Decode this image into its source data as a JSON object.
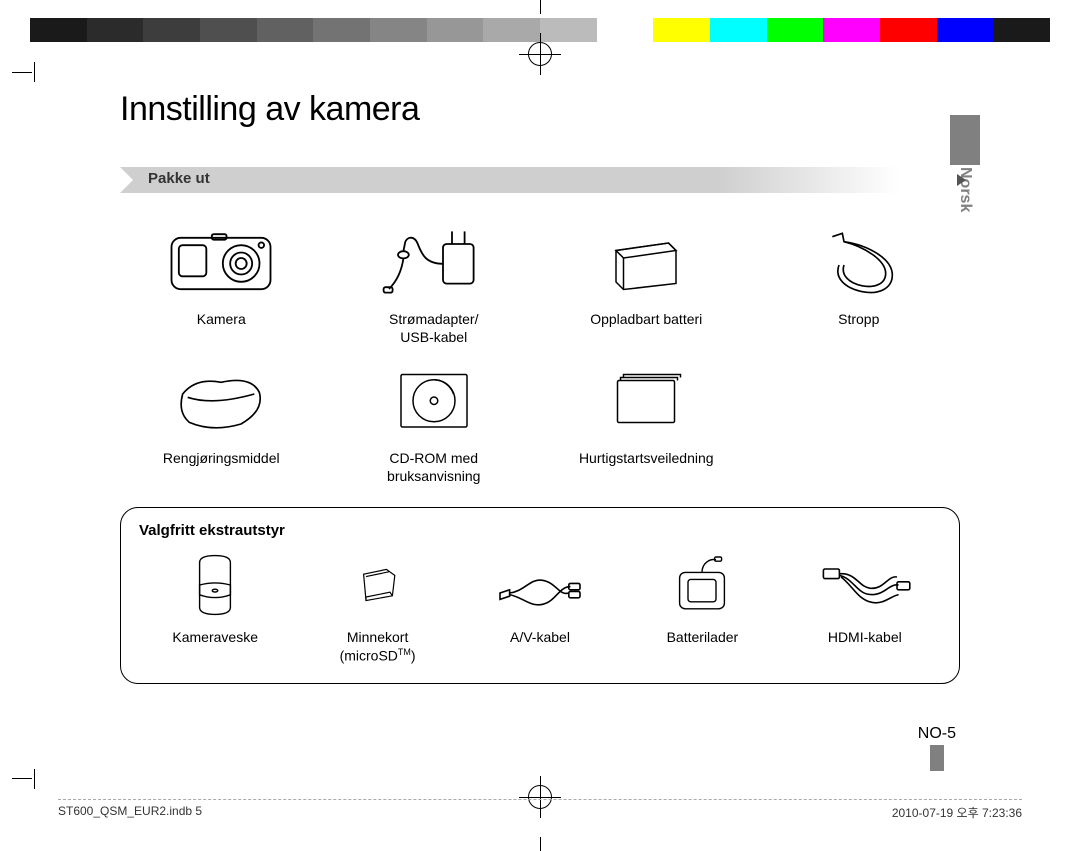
{
  "colorbar": [
    "#1a1a1a",
    "#2b2b2b",
    "#3d3d3d",
    "#4f4f4f",
    "#616161",
    "#737373",
    "#858585",
    "#979797",
    "#a9a9a9",
    "#bbbbbb",
    "#ffffff",
    "#ffff00",
    "#00ffff",
    "#00ff00",
    "#ff00ff",
    "#ff0000",
    "#0000ff",
    "#1a1a1a"
  ],
  "page": {
    "title": "Innstilling av kamera",
    "language_tab": "Norsk",
    "section_header": "Pakke ut",
    "page_number": "NO-5"
  },
  "items_row1": [
    {
      "label": "Kamera"
    },
    {
      "label": "Strømadapter/\nUSB-kabel"
    },
    {
      "label": "Oppladbart batteri"
    },
    {
      "label": "Stropp"
    }
  ],
  "items_row2": [
    {
      "label": "Rengjøringsmiddel"
    },
    {
      "label": "CD-ROM med\nbruksanvisning"
    },
    {
      "label": "Hurtigstartsveiledning"
    }
  ],
  "optional": {
    "title": "Valgfritt ekstrautstyr",
    "items": [
      {
        "label": "Kameraveske"
      },
      {
        "label": "Minnekort\n(microSD™)"
      },
      {
        "label": "A/V-kabel"
      },
      {
        "label": "Batterilader"
      },
      {
        "label": "HDMI-kabel"
      }
    ]
  },
  "footer": {
    "left": "ST600_QSM_EUR2.indb   5",
    "right": "2010-07-19   오후 7:23:36"
  }
}
